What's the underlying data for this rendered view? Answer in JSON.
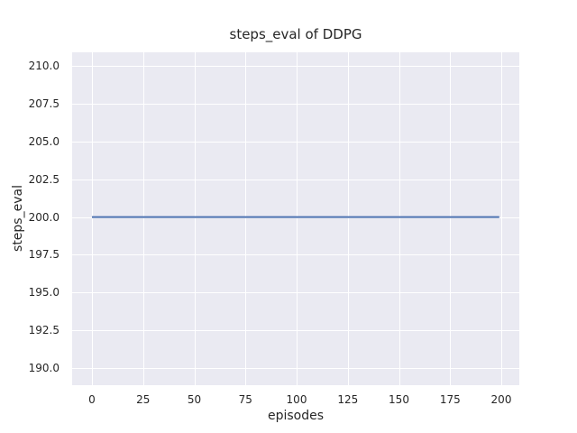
{
  "chart_data": {
    "type": "line",
    "title": "steps_eval of DDPG",
    "xlabel": "episodes",
    "ylabel": "steps_eval",
    "xlim": [
      -9.7,
      208.8
    ],
    "ylim": [
      188.87,
      210.9
    ],
    "x_ticks": [
      0,
      25,
      50,
      75,
      100,
      125,
      150,
      175,
      200
    ],
    "x_tick_labels": [
      "0",
      "25",
      "50",
      "75",
      "100",
      "125",
      "150",
      "175",
      "200"
    ],
    "y_ticks": [
      190.0,
      192.5,
      195.0,
      197.5,
      200.0,
      202.5,
      205.0,
      207.5,
      210.0
    ],
    "y_tick_labels": [
      "190.0",
      "192.5",
      "195.0",
      "197.5",
      "200.0",
      "202.5",
      "205.0",
      "207.5",
      "210.0"
    ],
    "grid": true,
    "legend": "none",
    "style": "seaborn-darkgrid",
    "series": [
      {
        "name": "DDPG",
        "color": "#4c72b0",
        "line_width": 2,
        "x": [
          0,
          199
        ],
        "y": [
          200,
          200
        ]
      }
    ],
    "colors": {
      "figure_background": "#ffffff",
      "axes_background": "#eaeaf2",
      "grid": "#ffffff",
      "text": "#262626"
    }
  }
}
